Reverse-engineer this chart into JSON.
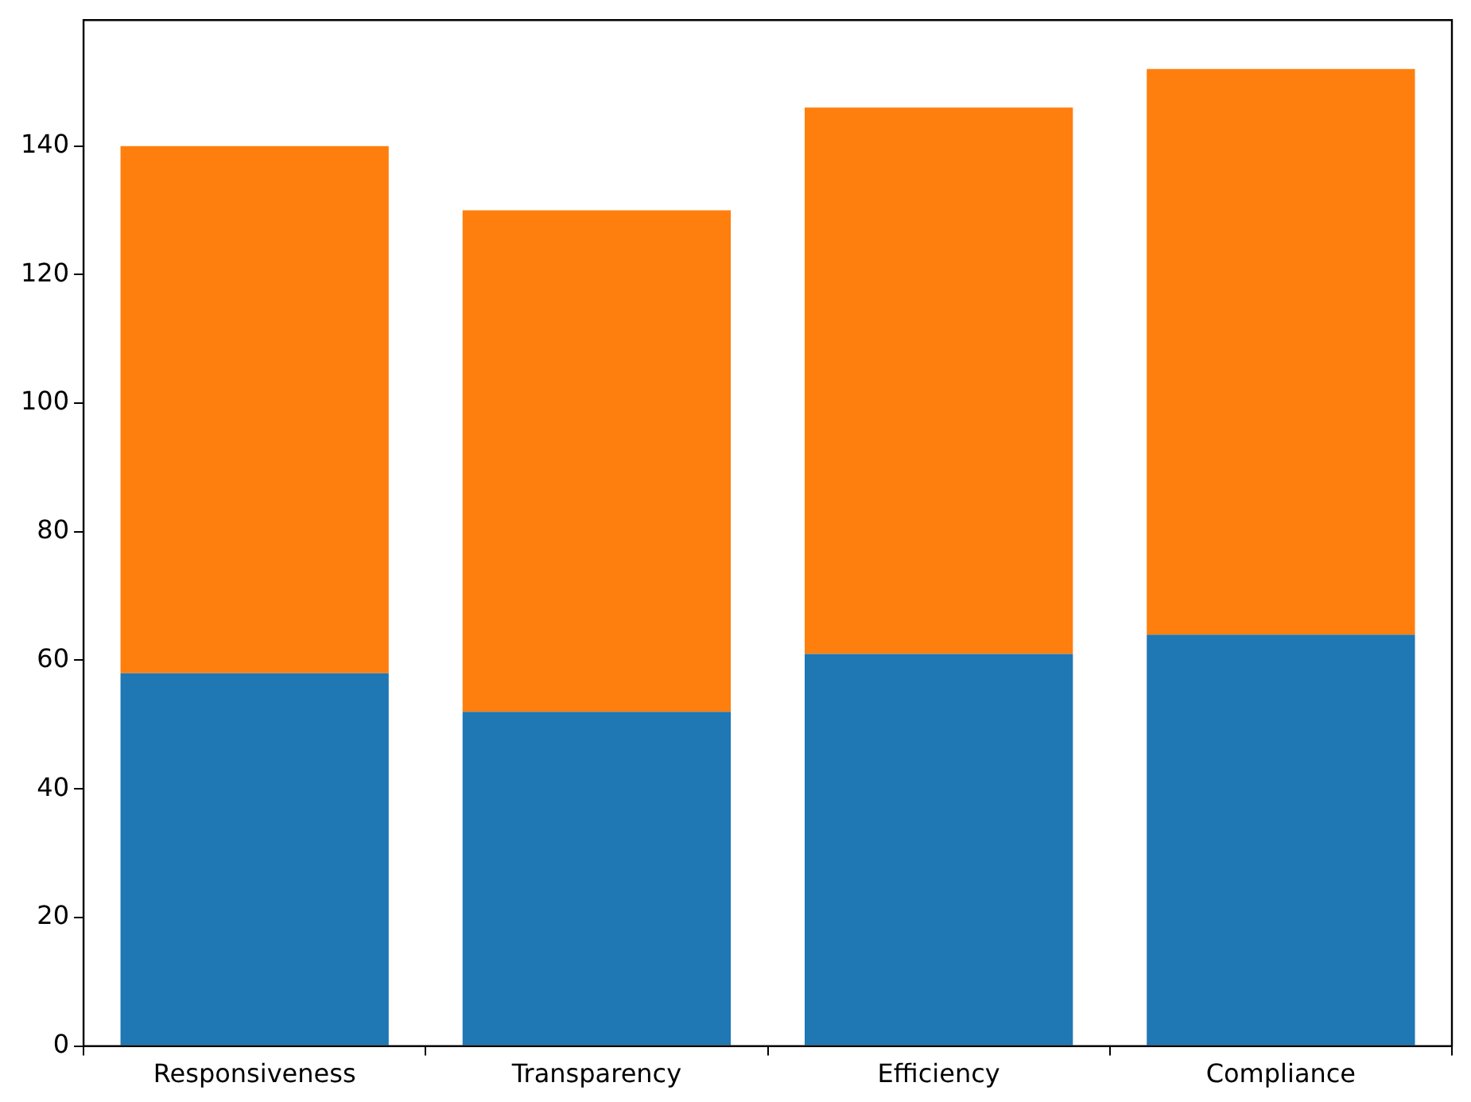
{
  "chart_data": {
    "type": "bar",
    "stacked": true,
    "categories": [
      "Responsiveness",
      "Transparency",
      "Efficiency",
      "Compliance"
    ],
    "series": [
      {
        "color": "#1f77b4",
        "values": [
          58,
          52,
          61,
          64
        ]
      },
      {
        "color": "#ff7f0e",
        "values": [
          82,
          78,
          85,
          88
        ]
      }
    ],
    "ylim": [
      0,
      159.6
    ],
    "yticks": [
      0,
      20,
      40,
      60,
      80,
      100,
      120,
      140
    ],
    "grid": false,
    "legend": false
  }
}
